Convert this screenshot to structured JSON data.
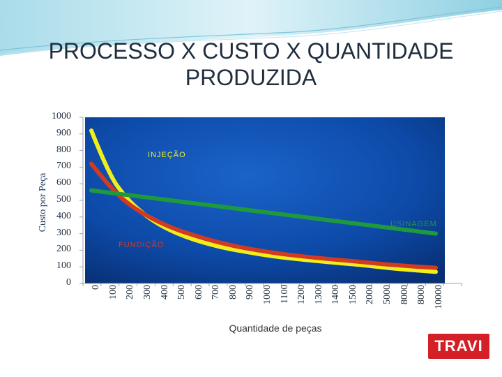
{
  "slide": {
    "title_line1": "PROCESSO X CUSTO X QUANTIDADE",
    "title_line2": "PRODUZIDA",
    "logo_text": "TRAVI"
  },
  "chart_data": {
    "type": "line",
    "title": "PROCESSO X CUSTO X QUANTIDADE PRODUZIDA",
    "xlabel": "Quantidade de peças",
    "ylabel": "Custo por  Peça",
    "y_ticks": [
      "0",
      "100",
      "200",
      "300",
      "400",
      "500",
      "600",
      "700",
      "800",
      "900",
      "1000"
    ],
    "ylim": [
      0,
      1000
    ],
    "categories": [
      "0",
      "100",
      "200",
      "300",
      "400",
      "500",
      "600",
      "700",
      "800",
      "900",
      "1000",
      "1100",
      "1200",
      "1300",
      "1400",
      "1500",
      "2000",
      "5000",
      "8000",
      "8000",
      "10000"
    ],
    "grid": false,
    "legend": "inline labels",
    "background_color": "#0b3f8f",
    "series": [
      {
        "name": "INJEÇÃO",
        "color": "#f2ee1a",
        "values": [
          920,
          660,
          515,
          420,
          350,
          300,
          262,
          232,
          208,
          190,
          172,
          158,
          146,
          136,
          126,
          118,
          108,
          96,
          86,
          78,
          70
        ]
      },
      {
        "name": "FUNDIÇÃO",
        "color": "#d23b22",
        "values": [
          720,
          590,
          490,
          420,
          365,
          322,
          288,
          258,
          232,
          211,
          194,
          178,
          166,
          155,
          145,
          136,
          126,
          116,
          108,
          100,
          94
        ]
      },
      {
        "name": "USINAGEM",
        "color": "#1e9a3c",
        "values": [
          560,
          547,
          534,
          521,
          508,
          495,
          482,
          469,
          456,
          443,
          430,
          417,
          404,
          391,
          378,
          365,
          352,
          339,
          326,
          313,
          300
        ]
      }
    ],
    "series_label_positions": [
      "upper-left",
      "lower-left",
      "right"
    ]
  }
}
